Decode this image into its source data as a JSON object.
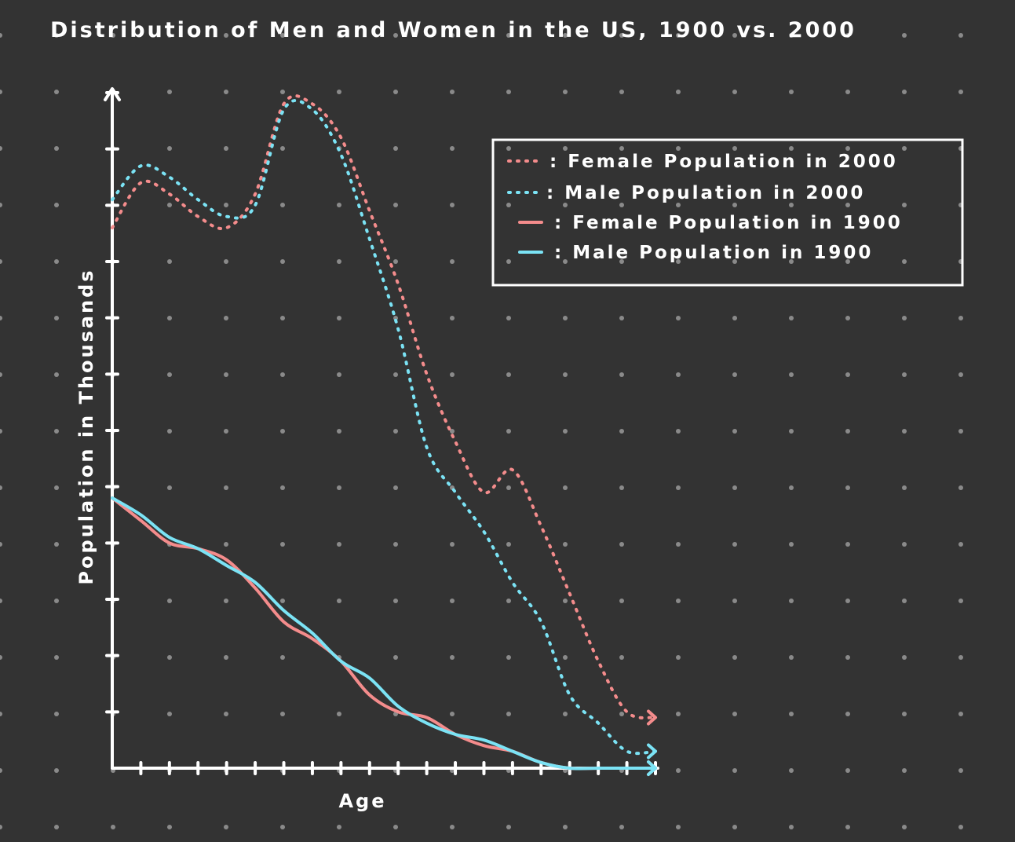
{
  "chart_data": {
    "type": "line",
    "title": "Distribution of Men and Women in the US, 1900 vs. 2000",
    "xlabel": "Age",
    "ylabel": "Population in Thousands",
    "x": [
      0,
      1,
      2,
      3,
      4,
      5,
      6,
      7,
      8,
      9,
      10,
      11,
      12,
      13,
      14,
      15,
      16,
      17,
      18,
      19
    ],
    "xlim": [
      0,
      19
    ],
    "ylim": [
      0,
      12
    ],
    "grid": "dots",
    "legend_position": "top-right",
    "series": [
      {
        "name": "Female Population in 2000",
        "color": "#f48c8c",
        "style": "dotted",
        "values": [
          9.6,
          10.4,
          10.2,
          9.8,
          9.6,
          10.2,
          11.8,
          11.8,
          11.2,
          9.9,
          8.6,
          7.0,
          5.8,
          4.9,
          5.3,
          4.3,
          3.1,
          1.9,
          1.0,
          0.9
        ]
      },
      {
        "name": "Male Population in 2000",
        "color": "#7be3f5",
        "style": "dotted",
        "values": [
          10.1,
          10.7,
          10.5,
          10.1,
          9.8,
          10.0,
          11.7,
          11.7,
          10.9,
          9.4,
          7.8,
          5.7,
          4.9,
          4.2,
          3.3,
          2.6,
          1.3,
          0.8,
          0.3,
          0.3
        ]
      },
      {
        "name": "Female Population in 1900",
        "color": "#f48c8c",
        "style": "solid",
        "values": [
          4.8,
          4.4,
          4.0,
          3.9,
          3.7,
          3.2,
          2.6,
          2.3,
          1.9,
          1.3,
          1.0,
          0.9,
          0.6,
          0.4,
          0.3,
          0.1,
          0.0,
          0.0,
          0.0,
          0.0
        ]
      },
      {
        "name": "Male Population in 1900",
        "color": "#7be3f5",
        "style": "solid",
        "values": [
          4.8,
          4.5,
          4.1,
          3.9,
          3.6,
          3.3,
          2.8,
          2.4,
          1.9,
          1.6,
          1.1,
          0.8,
          0.6,
          0.5,
          0.3,
          0.1,
          0.0,
          0.0,
          0.0,
          0.0
        ]
      }
    ]
  },
  "colors": {
    "background": "#333333",
    "axis": "#ffffff",
    "grid_dot": "#8a8a8a",
    "text": "#ffffff",
    "legend_border": "#ffffff"
  }
}
